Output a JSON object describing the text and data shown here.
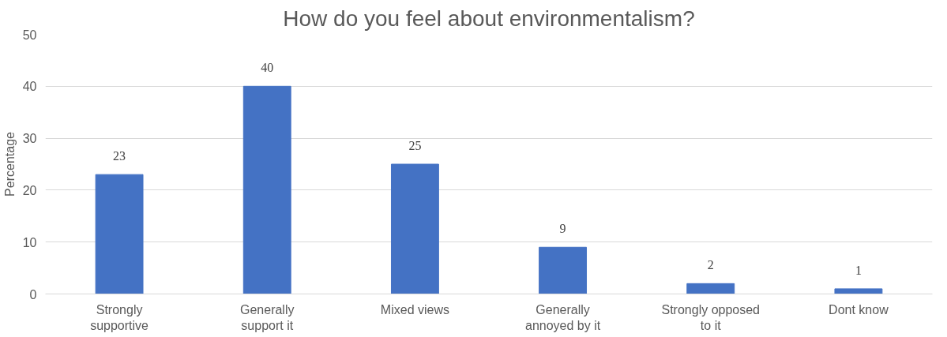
{
  "chart_data": {
    "type": "bar",
    "title": "How do you feel about environmentalism?",
    "ylabel": "Percentage",
    "categories": [
      "Strongly supportive",
      "Generally support it",
      "Mixed views",
      "Generally annoyed by it",
      "Strongly opposed to it",
      "Dont know"
    ],
    "values": [
      23,
      40,
      25,
      9,
      2,
      1
    ],
    "color": "#4472c4",
    "ylim": [
      0,
      50
    ],
    "yticks": [
      0,
      10,
      20,
      30,
      40,
      50
    ],
    "grid": "y",
    "data_labels": true
  }
}
